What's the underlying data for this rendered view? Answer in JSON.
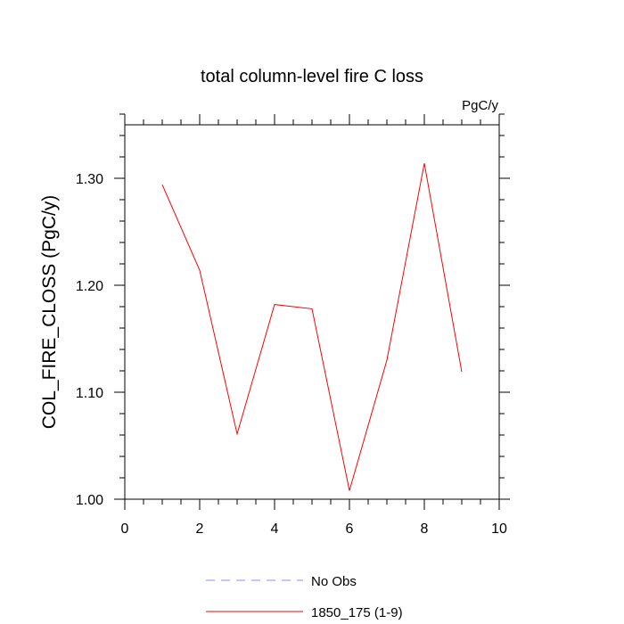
{
  "chart_data": {
    "type": "line",
    "title": "total column-level fire C loss",
    "units_label": "PgC/y",
    "xlabel": "",
    "ylabel": "COL_FIRE_CLOSS  (PgC/y)",
    "xlim": [
      0,
      10
    ],
    "ylim": [
      1.0,
      1.35
    ],
    "x_ticks": [
      0,
      2,
      4,
      6,
      8,
      10
    ],
    "x_tick_labels": [
      "0",
      "2",
      "4",
      "6",
      "8",
      "10"
    ],
    "y_ticks": [
      1.0,
      1.1,
      1.2,
      1.3
    ],
    "y_tick_labels": [
      "1.00",
      "1.10",
      "1.20",
      "1.30"
    ],
    "grid": false,
    "legend_position": "bottom",
    "series": [
      {
        "name": "No Obs",
        "color": "#8c8cff",
        "dash": "dashed",
        "x": [],
        "y": []
      },
      {
        "name": "1850_175 (1-9)",
        "color": "#ff0000",
        "dash": "solid",
        "x": [
          1,
          2,
          3,
          4,
          5,
          6,
          7,
          8,
          9
        ],
        "y": [
          1.294,
          1.214,
          1.061,
          1.182,
          1.178,
          1.008,
          1.13,
          1.314,
          1.119
        ]
      }
    ]
  }
}
